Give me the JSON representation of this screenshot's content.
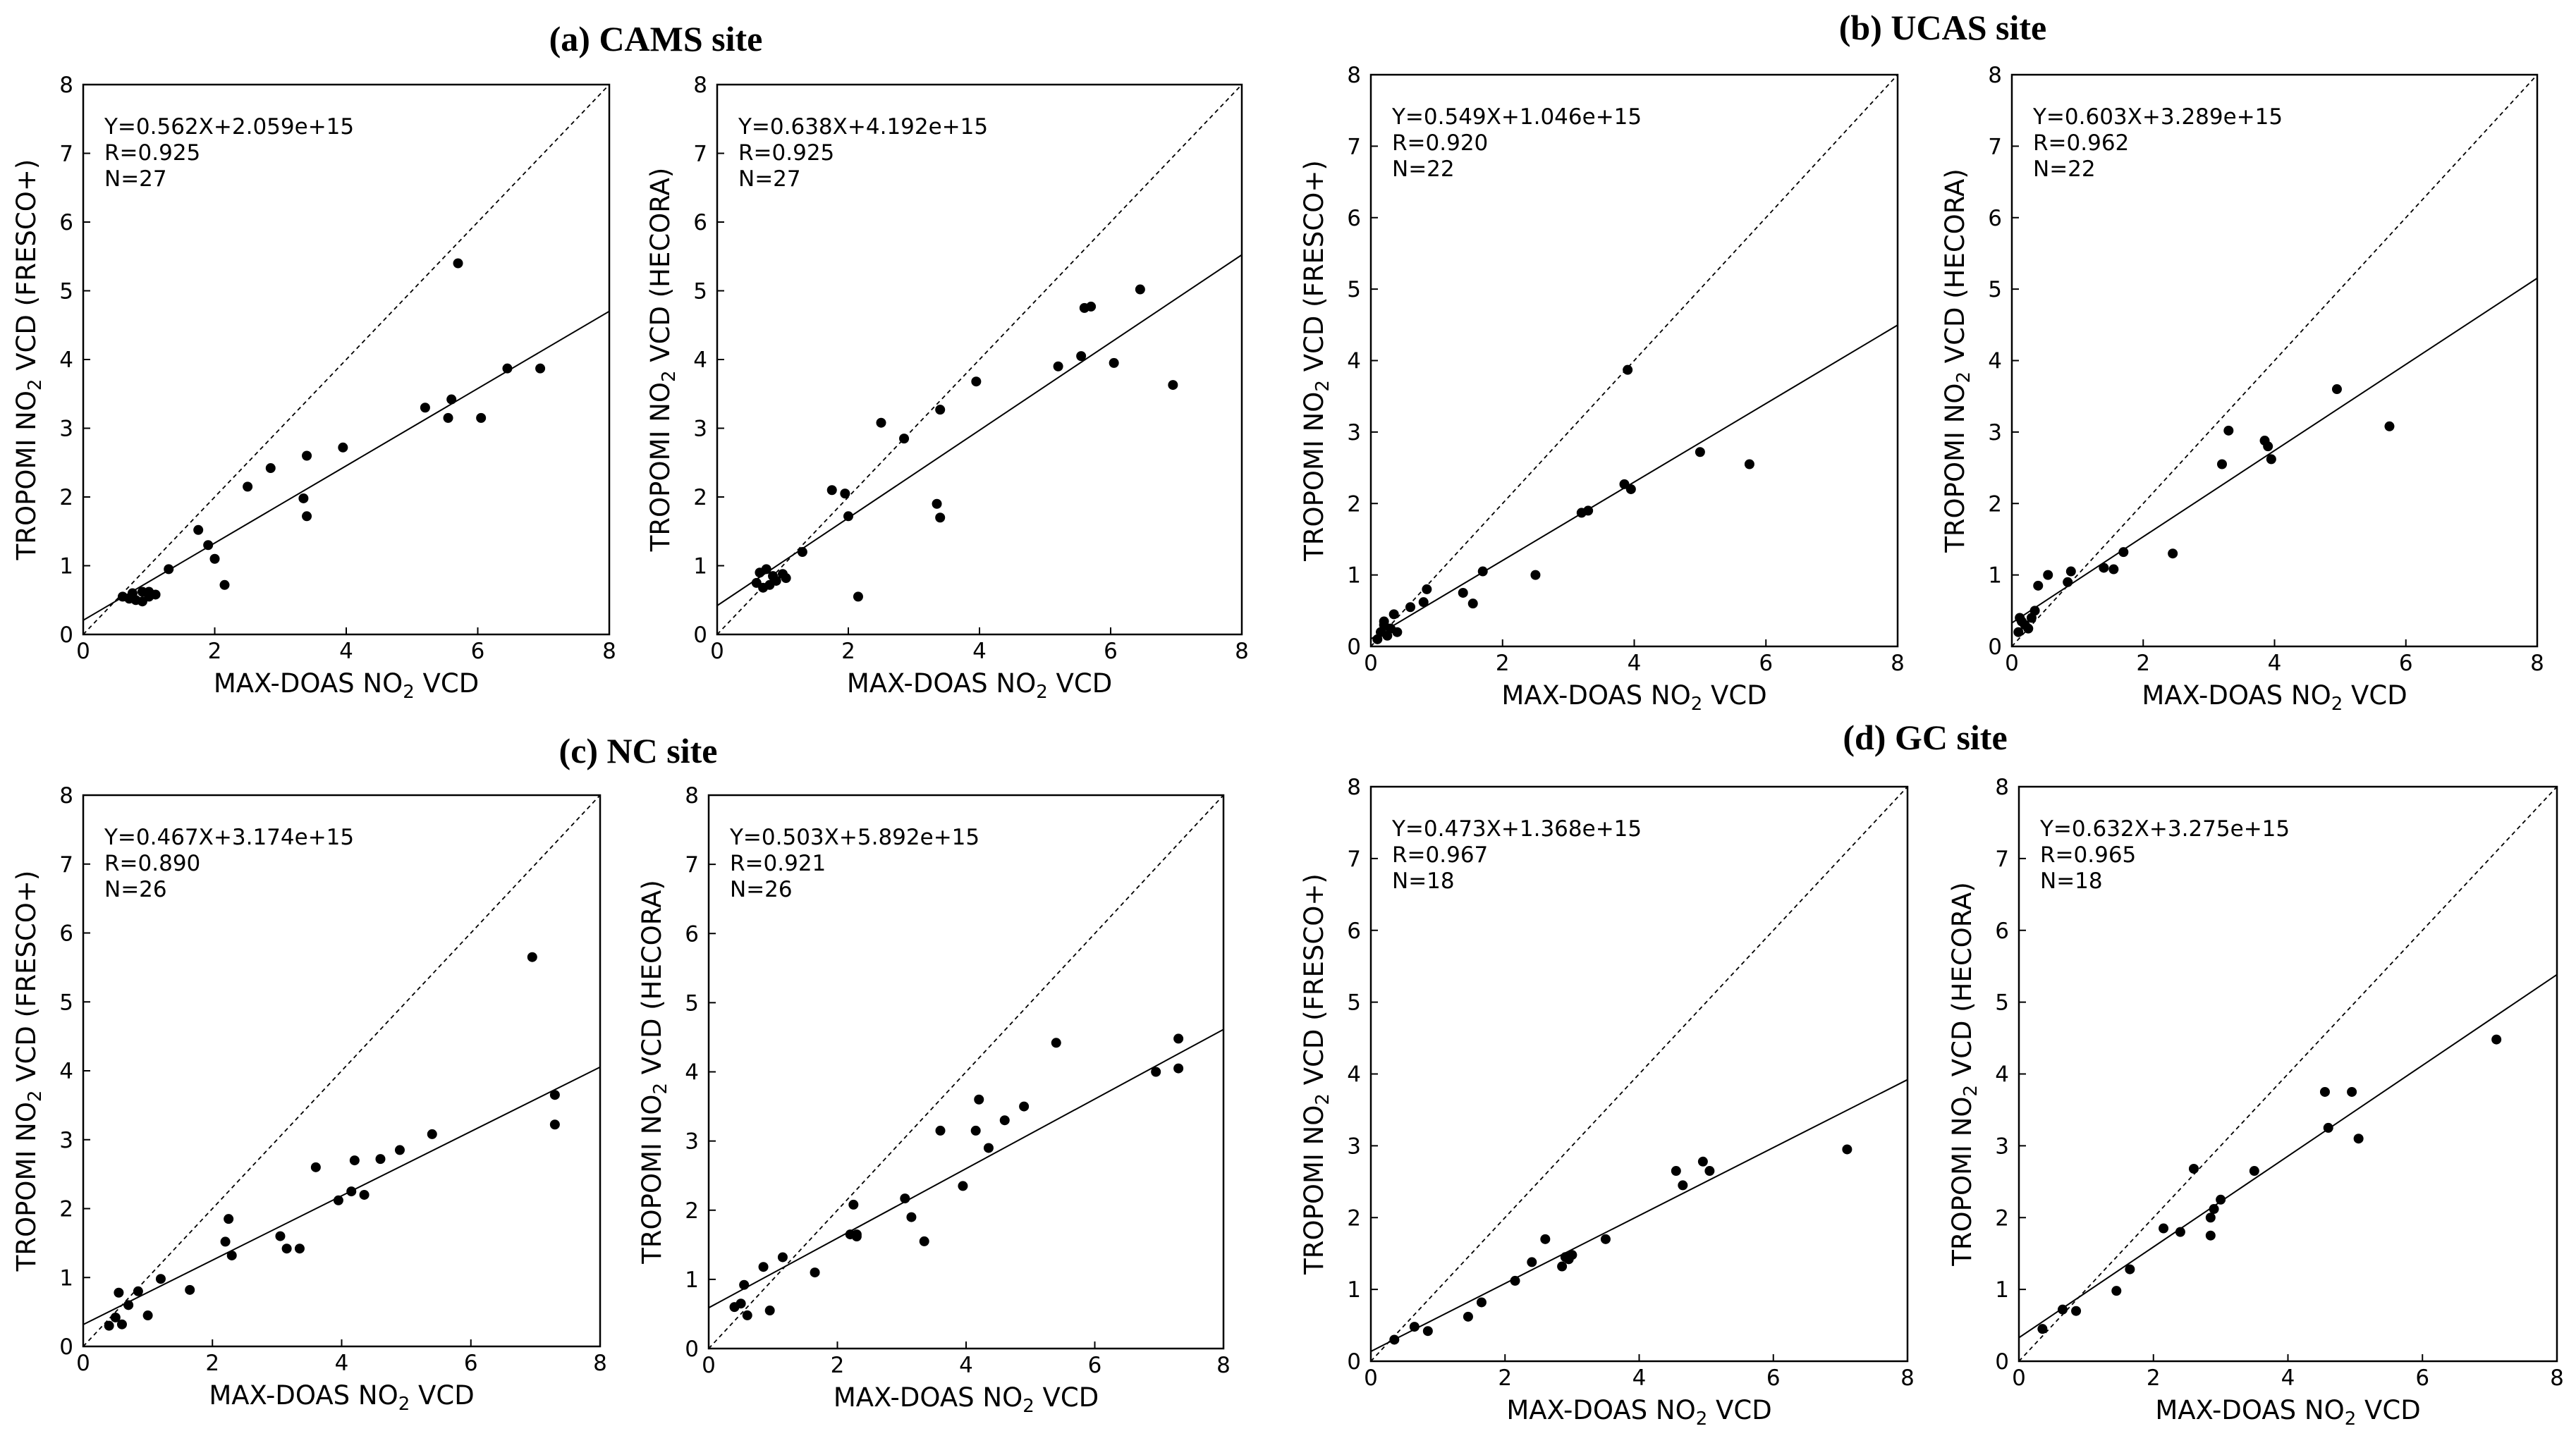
{
  "site_titles": [
    "(a) CAMS site",
    "(b) UCAS site",
    "(c) NC site",
    "(d) GC site"
  ],
  "chart_data": [
    {
      "type": "scatter",
      "site": "(a) CAMS site",
      "xlabel": "MAX-DOAS NO2 VCD",
      "ylabel": "TROPOMI NO2 VCD (FRESCO+)",
      "xlim": [
        0,
        8
      ],
      "ylim": [
        0,
        8
      ],
      "xticks": [
        "0",
        "2",
        "4",
        "6",
        "8"
      ],
      "yticks": [
        "0",
        "1",
        "2",
        "3",
        "4",
        "5",
        "6",
        "7",
        "8"
      ],
      "annotation": [
        "Y=0.562X+2.059e+15",
        "R=0.925",
        "N=27"
      ],
      "fit": {
        "slope": 0.562,
        "intercept": 0.2059
      },
      "x": [
        0.6,
        0.7,
        0.8,
        0.9,
        0.9,
        1.0,
        1.1,
        1.3,
        1.75,
        1.9,
        2.0,
        2.15,
        2.5,
        2.85,
        3.35,
        3.4,
        3.4,
        3.95,
        5.2,
        5.55,
        5.6,
        5.7,
        6.05,
        6.45,
        6.95,
        0.75,
        1.0
      ],
      "y": [
        0.55,
        0.52,
        0.5,
        0.62,
        0.48,
        0.55,
        0.58,
        0.95,
        1.52,
        1.3,
        1.1,
        0.72,
        2.15,
        2.42,
        1.98,
        2.6,
        1.72,
        2.72,
        3.3,
        3.15,
        3.42,
        5.4,
        3.15,
        3.87,
        3.87,
        0.6,
        0.62
      ]
    },
    {
      "type": "scatter",
      "site": "(a) CAMS site",
      "xlabel": "MAX-DOAS NO2 VCD",
      "ylabel": "TROPOMI NO2 VCD (HECORA)",
      "xlim": [
        0,
        8
      ],
      "ylim": [
        0,
        8
      ],
      "xticks": [
        "0",
        "2",
        "4",
        "6",
        "8"
      ],
      "yticks": [
        "0",
        "1",
        "2",
        "3",
        "4",
        "5",
        "6",
        "7",
        "8"
      ],
      "annotation": [
        "Y=0.638X+4.192e+15",
        "R=0.925",
        "N=27"
      ],
      "fit": {
        "slope": 0.638,
        "intercept": 0.4192
      },
      "x": [
        0.6,
        0.7,
        0.75,
        0.8,
        0.85,
        0.9,
        1.0,
        1.05,
        1.3,
        1.75,
        1.95,
        2.0,
        2.15,
        2.5,
        2.85,
        3.35,
        3.4,
        3.4,
        3.95,
        5.2,
        5.55,
        5.6,
        5.7,
        6.05,
        6.45,
        6.95,
        0.65
      ],
      "y": [
        0.75,
        0.68,
        0.95,
        0.72,
        0.85,
        0.78,
        0.88,
        0.82,
        1.2,
        2.1,
        2.05,
        1.72,
        0.55,
        3.08,
        2.85,
        1.9,
        1.7,
        3.27,
        3.68,
        3.9,
        4.05,
        4.75,
        4.77,
        3.95,
        5.02,
        3.63,
        0.9
      ]
    },
    {
      "type": "scatter",
      "site": "(b) UCAS site",
      "xlabel": "MAX-DOAS NO2 VCD",
      "ylabel": "TROPOMI NO2 VCD (FRESCO+)",
      "xlim": [
        0,
        8
      ],
      "ylim": [
        0,
        8
      ],
      "xticks": [
        "0",
        "2",
        "4",
        "6",
        "8"
      ],
      "yticks": [
        "0",
        "1",
        "2",
        "3",
        "4",
        "5",
        "6",
        "7",
        "8"
      ],
      "annotation": [
        "Y=0.549X+1.046e+15",
        "R=0.920",
        "N=22"
      ],
      "fit": {
        "slope": 0.549,
        "intercept": 0.1046
      },
      "x": [
        0.1,
        0.15,
        0.2,
        0.25,
        0.3,
        0.35,
        0.4,
        0.6,
        0.8,
        0.85,
        1.4,
        1.55,
        1.7,
        2.5,
        3.2,
        3.3,
        3.85,
        3.9,
        3.95,
        5.0,
        5.75,
        0.2
      ],
      "y": [
        0.1,
        0.2,
        0.3,
        0.15,
        0.25,
        0.45,
        0.2,
        0.55,
        0.62,
        0.8,
        0.75,
        0.6,
        1.05,
        1.0,
        1.87,
        1.9,
        2.27,
        3.87,
        2.2,
        2.72,
        2.55,
        0.35
      ]
    },
    {
      "type": "scatter",
      "site": "(b) UCAS site",
      "xlabel": "MAX-DOAS NO2 VCD",
      "ylabel": "TROPOMI NO2 VCD (HECORA)",
      "xlim": [
        0,
        8
      ],
      "ylim": [
        0,
        8
      ],
      "xticks": [
        "0",
        "2",
        "4",
        "6",
        "8"
      ],
      "yticks": [
        "0",
        "1",
        "2",
        "3",
        "4",
        "5",
        "6",
        "7",
        "8"
      ],
      "annotation": [
        "Y=0.603X+3.289e+15",
        "R=0.962",
        "N=22"
      ],
      "fit": {
        "slope": 0.603,
        "intercept": 0.3289
      },
      "x": [
        0.1,
        0.15,
        0.2,
        0.25,
        0.3,
        0.4,
        0.55,
        0.85,
        0.9,
        1.4,
        1.55,
        1.7,
        2.45,
        3.2,
        3.3,
        3.85,
        3.9,
        3.95,
        4.95,
        5.75,
        0.12,
        0.35
      ],
      "y": [
        0.2,
        0.35,
        0.3,
        0.25,
        0.4,
        0.85,
        1.0,
        0.9,
        1.05,
        1.1,
        1.08,
        1.32,
        1.3,
        2.55,
        3.02,
        2.88,
        2.8,
        2.62,
        3.6,
        3.08,
        0.4,
        0.5
      ]
    },
    {
      "type": "scatter",
      "site": "(c) NC site",
      "xlabel": "MAX-DOAS NO2 VCD",
      "ylabel": "TROPOMI NO2 VCD (FRESCO+)",
      "xlim": [
        0,
        8
      ],
      "ylim": [
        0,
        8
      ],
      "xticks": [
        "0",
        "2",
        "4",
        "6",
        "8"
      ],
      "yticks": [
        "0",
        "1",
        "2",
        "3",
        "4",
        "5",
        "6",
        "7",
        "8"
      ],
      "annotation": [
        "Y=0.467X+3.174e+15",
        "R=0.890",
        "N=26"
      ],
      "fit": {
        "slope": 0.467,
        "intercept": 0.3174
      },
      "x": [
        0.4,
        0.5,
        0.55,
        0.6,
        0.85,
        1.0,
        1.2,
        1.65,
        2.2,
        2.25,
        2.3,
        3.05,
        3.15,
        3.35,
        3.6,
        3.95,
        4.15,
        4.2,
        4.35,
        4.6,
        4.9,
        5.4,
        6.95,
        7.3,
        7.3,
        0.7
      ],
      "y": [
        0.3,
        0.42,
        0.78,
        0.32,
        0.8,
        0.45,
        0.98,
        0.82,
        1.52,
        1.85,
        1.32,
        1.6,
        1.42,
        1.42,
        2.6,
        2.12,
        2.25,
        2.7,
        2.2,
        2.72,
        2.85,
        3.08,
        5.65,
        3.65,
        3.22,
        0.6
      ]
    },
    {
      "type": "scatter",
      "site": "(c) NC site",
      "xlabel": "MAX-DOAS NO2 VCD",
      "ylabel": "TROPOMI NO2 VCD (HECORA)",
      "xlim": [
        0,
        8
      ],
      "ylim": [
        0,
        8
      ],
      "xticks": [
        "0",
        "2",
        "4",
        "6",
        "8"
      ],
      "yticks": [
        "0",
        "1",
        "2",
        "3",
        "4",
        "5",
        "6",
        "7",
        "8"
      ],
      "annotation": [
        "Y=0.503X+5.892e+15",
        "R=0.921",
        "N=26"
      ],
      "fit": {
        "slope": 0.503,
        "intercept": 0.5892
      },
      "x": [
        0.4,
        0.5,
        0.55,
        0.6,
        0.85,
        0.95,
        1.15,
        1.65,
        2.2,
        2.25,
        2.3,
        3.05,
        3.15,
        3.35,
        3.6,
        3.95,
        4.15,
        4.2,
        4.35,
        4.6,
        4.9,
        5.4,
        6.95,
        7.3,
        7.3,
        2.3
      ],
      "y": [
        0.6,
        0.65,
        0.92,
        0.48,
        1.18,
        0.55,
        1.32,
        1.1,
        1.65,
        2.08,
        1.62,
        2.17,
        1.9,
        1.55,
        3.15,
        2.35,
        3.15,
        3.6,
        2.9,
        3.3,
        3.5,
        4.42,
        4.0,
        4.48,
        4.05,
        1.65
      ]
    },
    {
      "type": "scatter",
      "site": "(d) GC site",
      "xlabel": "MAX-DOAS NO2 VCD",
      "ylabel": "TROPOMI NO2 VCD (FRESCO+)",
      "xlim": [
        0,
        8
      ],
      "ylim": [
        0,
        8
      ],
      "xticks": [
        "0",
        "2",
        "4",
        "6",
        "8"
      ],
      "yticks": [
        "0",
        "1",
        "2",
        "3",
        "4",
        "5",
        "6",
        "7",
        "8"
      ],
      "annotation": [
        "Y=0.473X+1.368e+15",
        "R=0.967",
        "N=18"
      ],
      "fit": {
        "slope": 0.473,
        "intercept": 0.1368
      },
      "x": [
        0.35,
        0.65,
        0.85,
        1.45,
        1.65,
        2.15,
        2.4,
        2.6,
        2.85,
        2.9,
        3.0,
        3.5,
        4.55,
        4.65,
        4.95,
        5.05,
        7.1,
        2.95
      ],
      "y": [
        0.3,
        0.48,
        0.42,
        0.62,
        0.82,
        1.12,
        1.38,
        1.7,
        1.32,
        1.45,
        1.48,
        1.7,
        2.65,
        2.45,
        2.78,
        2.65,
        2.95,
        1.42
      ]
    },
    {
      "type": "scatter",
      "site": "(d) GC site",
      "xlabel": "MAX-DOAS NO2 VCD",
      "ylabel": "TROPOMI NO2 VCD (HECORA)",
      "xlim": [
        0,
        8
      ],
      "ylim": [
        0,
        8
      ],
      "xticks": [
        "0",
        "2",
        "4",
        "6",
        "8"
      ],
      "yticks": [
        "0",
        "1",
        "2",
        "3",
        "4",
        "5",
        "6",
        "7",
        "8"
      ],
      "annotation": [
        "Y=0.632X+3.275e+15",
        "R=0.965",
        "N=18"
      ],
      "fit": {
        "slope": 0.632,
        "intercept": 0.3275
      },
      "x": [
        0.35,
        0.65,
        0.85,
        1.45,
        1.65,
        2.15,
        2.4,
        2.6,
        2.85,
        2.9,
        3.0,
        3.5,
        4.55,
        4.6,
        4.95,
        5.05,
        7.1,
        2.85
      ],
      "y": [
        0.45,
        0.72,
        0.7,
        0.98,
        1.28,
        1.85,
        1.8,
        2.68,
        1.75,
        2.12,
        2.25,
        2.65,
        3.75,
        3.25,
        3.75,
        3.1,
        4.48,
        2.0
      ]
    }
  ]
}
